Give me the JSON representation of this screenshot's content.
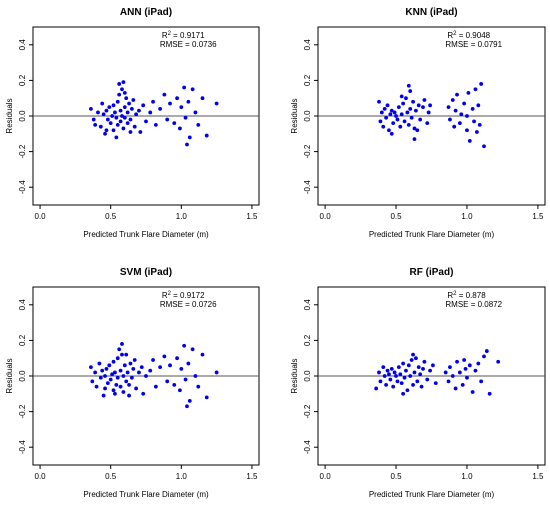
{
  "chart_data": [
    {
      "type": "scatter",
      "title": "ANN (iPad)",
      "xlabel": "Predicted Trunk Flare Diameter (m)",
      "ylabel": "Residuals",
      "xlim": [
        -0.05,
        1.55
      ],
      "ylim": [
        -0.5,
        0.5
      ],
      "xticks": [
        "0.0",
        "0.5",
        "1.0",
        "1.5"
      ],
      "yticks": [
        "-0.4",
        "-0.2",
        "0.0",
        "0.2",
        "0.4"
      ],
      "reference_line_y": 0,
      "stats": {
        "r2_label": "R",
        "r2_sup": "2",
        "r2_value": " = 0.9171",
        "rmse": "RMSE = 0.0736"
      },
      "color": "#0000ee",
      "points": [
        [
          0.36,
          0.04
        ],
        [
          0.38,
          -0.02
        ],
        [
          0.39,
          -0.05
        ],
        [
          0.41,
          0.02
        ],
        [
          0.43,
          -0.06
        ],
        [
          0.44,
          0.07
        ],
        [
          0.45,
          0.01
        ],
        [
          0.46,
          -0.1
        ],
        [
          0.47,
          0.03
        ],
        [
          0.48,
          -0.02
        ],
        [
          0.49,
          0.05
        ],
        [
          0.5,
          -0.04
        ],
        [
          0.51,
          0.0
        ],
        [
          0.52,
          0.06
        ],
        [
          0.52,
          -0.08
        ],
        [
          0.53,
          0.02
        ],
        [
          0.54,
          -0.01
        ],
        [
          0.55,
          0.08
        ],
        [
          0.55,
          -0.05
        ],
        [
          0.56,
          0.12
        ],
        [
          0.57,
          0.03
        ],
        [
          0.57,
          -0.03
        ],
        [
          0.58,
          0.15
        ],
        [
          0.58,
          0.0
        ],
        [
          0.59,
          -0.07
        ],
        [
          0.6,
          0.05
        ],
        [
          0.6,
          -0.01
        ],
        [
          0.61,
          0.1
        ],
        [
          0.62,
          -0.04
        ],
        [
          0.62,
          0.02
        ],
        [
          0.63,
          0.07
        ],
        [
          0.64,
          -0.02
        ],
        [
          0.65,
          0.04
        ],
        [
          0.66,
          0.09
        ],
        [
          0.67,
          -0.06
        ],
        [
          0.68,
          0.01
        ],
        [
          0.7,
          0.03
        ],
        [
          0.71,
          -0.09
        ],
        [
          0.73,
          0.06
        ],
        [
          0.75,
          -0.03
        ],
        [
          0.78,
          0.02
        ],
        [
          0.8,
          0.08
        ],
        [
          0.82,
          -0.05
        ],
        [
          0.85,
          0.04
        ],
        [
          0.88,
          0.12
        ],
        [
          0.9,
          -0.02
        ],
        [
          0.92,
          0.07
        ],
        [
          0.95,
          -0.04
        ],
        [
          0.97,
          0.1
        ],
        [
          0.99,
          -0.07
        ],
        [
          1.0,
          0.05
        ],
        [
          1.02,
          0.16
        ],
        [
          1.03,
          -0.01
        ],
        [
          1.05,
          0.08
        ],
        [
          1.06,
          -0.12
        ],
        [
          1.08,
          0.15
        ],
        [
          1.1,
          0.02
        ],
        [
          1.12,
          -0.05
        ],
        [
          1.15,
          0.1
        ],
        [
          1.18,
          -0.11
        ],
        [
          1.25,
          0.07
        ],
        [
          0.56,
          0.18
        ],
        [
          0.59,
          0.19
        ],
        [
          0.54,
          -0.12
        ],
        [
          0.47,
          -0.08
        ],
        [
          0.64,
          -0.09
        ],
        [
          1.04,
          -0.16
        ],
        [
          0.6,
          0.13
        ]
      ]
    },
    {
      "type": "scatter",
      "title": "KNN (iPad)",
      "xlabel": "Predicted Trunk Flare Diameter (m)",
      "ylabel": "Residuals",
      "xlim": [
        -0.05,
        1.55
      ],
      "ylim": [
        -0.5,
        0.5
      ],
      "xticks": [
        "0.0",
        "0.5",
        "1.0",
        "1.5"
      ],
      "yticks": [
        "-0.4",
        "-0.2",
        "0.0",
        "0.2",
        "0.4"
      ],
      "reference_line_y": 0,
      "stats": {
        "r2_label": "R",
        "r2_sup": "2",
        "r2_value": " = 0.9048",
        "rmse": "RMSE = 0.0791"
      },
      "color": "#0000ee",
      "points": [
        [
          0.38,
          0.08
        ],
        [
          0.39,
          -0.03
        ],
        [
          0.4,
          0.02
        ],
        [
          0.41,
          -0.06
        ],
        [
          0.42,
          0.04
        ],
        [
          0.43,
          -0.01
        ],
        [
          0.44,
          0.06
        ],
        [
          0.45,
          -0.08
        ],
        [
          0.46,
          0.01
        ],
        [
          0.47,
          0.03
        ],
        [
          0.48,
          -0.04
        ],
        [
          0.49,
          0.02
        ],
        [
          0.5,
          0.0
        ],
        [
          0.51,
          -0.02
        ],
        [
          0.52,
          0.05
        ],
        [
          0.53,
          -0.06
        ],
        [
          0.54,
          0.01
        ],
        [
          0.55,
          0.07
        ],
        [
          0.56,
          -0.03
        ],
        [
          0.57,
          0.1
        ],
        [
          0.58,
          0.02
        ],
        [
          0.59,
          -0.05
        ],
        [
          0.6,
          0.14
        ],
        [
          0.6,
          0.04
        ],
        [
          0.61,
          -0.01
        ],
        [
          0.62,
          0.08
        ],
        [
          0.63,
          -0.07
        ],
        [
          0.64,
          0.03
        ],
        [
          0.66,
          0.06
        ],
        [
          0.67,
          -0.02
        ],
        [
          0.69,
          0.05
        ],
        [
          0.7,
          0.09
        ],
        [
          0.72,
          -0.04
        ],
        [
          0.73,
          0.02
        ],
        [
          0.74,
          0.06
        ],
        [
          0.87,
          0.05
        ],
        [
          0.88,
          -0.02
        ],
        [
          0.9,
          0.09
        ],
        [
          0.91,
          -0.06
        ],
        [
          0.92,
          0.03
        ],
        [
          0.93,
          0.12
        ],
        [
          0.95,
          -0.04
        ],
        [
          0.96,
          0.01
        ],
        [
          0.98,
          0.07
        ],
        [
          1.0,
          -0.08
        ],
        [
          1.01,
          0.13
        ],
        [
          1.02,
          -0.14
        ],
        [
          1.04,
          0.04
        ],
        [
          1.05,
          -0.03
        ],
        [
          1.06,
          0.15
        ],
        [
          1.07,
          -0.09
        ],
        [
          1.08,
          0.06
        ],
        [
          1.09,
          -0.05
        ],
        [
          1.1,
          0.18
        ],
        [
          1.12,
          -0.17
        ],
        [
          0.59,
          0.17
        ],
        [
          0.47,
          -0.1
        ],
        [
          0.63,
          -0.13
        ],
        [
          1.0,
          0.0
        ],
        [
          0.54,
          0.11
        ],
        [
          0.65,
          -0.08
        ]
      ]
    },
    {
      "type": "scatter",
      "title": "SVM (iPad)",
      "xlabel": "Predicted Trunk Flare Diameter (m)",
      "ylabel": "Residuals",
      "xlim": [
        -0.05,
        1.55
      ],
      "ylim": [
        -0.5,
        0.5
      ],
      "xticks": [
        "0.0",
        "0.5",
        "1.0",
        "1.5"
      ],
      "yticks": [
        "-0.4",
        "-0.2",
        "0.0",
        "0.2",
        "0.4"
      ],
      "reference_line_y": 0,
      "stats": {
        "r2_label": "R",
        "r2_sup": "2",
        "r2_value": " = 0.9172",
        "rmse": "RMSE = 0.0726"
      },
      "color": "#0000ee",
      "points": [
        [
          0.36,
          0.05
        ],
        [
          0.37,
          -0.03
        ],
        [
          0.39,
          0.02
        ],
        [
          0.4,
          -0.06
        ],
        [
          0.42,
          0.07
        ],
        [
          0.43,
          -0.01
        ],
        [
          0.44,
          0.03
        ],
        [
          0.45,
          -0.11
        ],
        [
          0.46,
          0.0
        ],
        [
          0.47,
          0.04
        ],
        [
          0.48,
          -0.04
        ],
        [
          0.49,
          0.06
        ],
        [
          0.5,
          -0.02
        ],
        [
          0.51,
          0.01
        ],
        [
          0.52,
          0.08
        ],
        [
          0.52,
          -0.08
        ],
        [
          0.53,
          0.02
        ],
        [
          0.54,
          -0.05
        ],
        [
          0.55,
          0.1
        ],
        [
          0.55,
          -0.01
        ],
        [
          0.56,
          0.15
        ],
        [
          0.57,
          0.03
        ],
        [
          0.57,
          -0.06
        ],
        [
          0.58,
          0.18
        ],
        [
          0.59,
          0.0
        ],
        [
          0.59,
          -0.09
        ],
        [
          0.6,
          0.06
        ],
        [
          0.61,
          -0.03
        ],
        [
          0.61,
          0.12
        ],
        [
          0.62,
          0.02
        ],
        [
          0.63,
          -0.05
        ],
        [
          0.64,
          0.07
        ],
        [
          0.65,
          -0.01
        ],
        [
          0.66,
          0.04
        ],
        [
          0.67,
          0.09
        ],
        [
          0.68,
          -0.07
        ],
        [
          0.7,
          0.02
        ],
        [
          0.72,
          0.05
        ],
        [
          0.73,
          -0.1
        ],
        [
          0.75,
          0.0
        ],
        [
          0.78,
          0.03
        ],
        [
          0.8,
          0.09
        ],
        [
          0.82,
          -0.06
        ],
        [
          0.85,
          0.05
        ],
        [
          0.88,
          0.11
        ],
        [
          0.9,
          -0.03
        ],
        [
          0.92,
          0.06
        ],
        [
          0.95,
          -0.05
        ],
        [
          0.97,
          0.1
        ],
        [
          0.99,
          -0.08
        ],
        [
          1.0,
          0.04
        ],
        [
          1.02,
          0.17
        ],
        [
          1.03,
          -0.02
        ],
        [
          1.05,
          0.07
        ],
        [
          1.06,
          -0.14
        ],
        [
          1.08,
          0.15
        ],
        [
          1.1,
          0.0
        ],
        [
          1.12,
          -0.06
        ],
        [
          1.15,
          0.12
        ],
        [
          1.18,
          -0.12
        ],
        [
          1.25,
          0.02
        ],
        [
          0.58,
          0.12
        ],
        [
          0.53,
          -0.1
        ],
        [
          0.63,
          -0.11
        ],
        [
          1.04,
          -0.17
        ],
        [
          0.46,
          -0.07
        ]
      ]
    },
    {
      "type": "scatter",
      "title": "RF (iPad)",
      "xlabel": "Predicted Trunk Flare Diameter (m)",
      "ylabel": "Residuals",
      "xlim": [
        -0.05,
        1.55
      ],
      "ylim": [
        -0.5,
        0.5
      ],
      "xticks": [
        "0.0",
        "0.5",
        "1.0",
        "1.5"
      ],
      "yticks": [
        "-0.4",
        "-0.2",
        "0.0",
        "0.2",
        "0.4"
      ],
      "reference_line_y": 0,
      "stats": {
        "r2_label": "R",
        "r2_sup": "2",
        "r2_value": " = 0.878",
        "rmse": "RMSE = 0.0872"
      },
      "color": "#0000ee",
      "points": [
        [
          0.36,
          -0.07
        ],
        [
          0.38,
          0.02
        ],
        [
          0.39,
          -0.03
        ],
        [
          0.41,
          0.05
        ],
        [
          0.42,
          0.0
        ],
        [
          0.43,
          -0.05
        ],
        [
          0.44,
          0.03
        ],
        [
          0.45,
          0.01
        ],
        [
          0.46,
          -0.02
        ],
        [
          0.47,
          0.04
        ],
        [
          0.48,
          -0.06
        ],
        [
          0.49,
          0.02
        ],
        [
          0.5,
          0.0
        ],
        [
          0.51,
          -0.03
        ],
        [
          0.52,
          0.05
        ],
        [
          0.53,
          0.01
        ],
        [
          0.54,
          -0.04
        ],
        [
          0.55,
          0.07
        ],
        [
          0.56,
          -0.01
        ],
        [
          0.57,
          0.03
        ],
        [
          0.58,
          -0.08
        ],
        [
          0.59,
          0.06
        ],
        [
          0.6,
          0.0
        ],
        [
          0.61,
          0.09
        ],
        [
          0.62,
          -0.05
        ],
        [
          0.63,
          0.02
        ],
        [
          0.64,
          0.1
        ],
        [
          0.65,
          -0.03
        ],
        [
          0.66,
          0.05
        ],
        [
          0.67,
          0.01
        ],
        [
          0.68,
          -0.06
        ],
        [
          0.69,
          0.04
        ],
        [
          0.7,
          0.08
        ],
        [
          0.72,
          -0.02
        ],
        [
          0.74,
          0.03
        ],
        [
          0.76,
          0.06
        ],
        [
          0.78,
          -0.04
        ],
        [
          0.85,
          0.02
        ],
        [
          0.87,
          -0.03
        ],
        [
          0.88,
          0.05
        ],
        [
          0.9,
          0.0
        ],
        [
          0.92,
          -0.07
        ],
        [
          0.93,
          0.08
        ],
        [
          0.95,
          0.02
        ],
        [
          0.97,
          -0.05
        ],
        [
          0.99,
          0.04
        ],
        [
          1.0,
          -0.01
        ],
        [
          1.02,
          0.06
        ],
        [
          1.04,
          -0.09
        ],
        [
          1.06,
          0.03
        ],
        [
          1.08,
          0.07
        ],
        [
          1.1,
          -0.03
        ],
        [
          1.12,
          0.11
        ],
        [
          1.14,
          0.14
        ],
        [
          1.16,
          -0.1
        ],
        [
          1.22,
          0.08
        ],
        [
          0.55,
          -0.1
        ],
        [
          0.62,
          0.12
        ],
        [
          0.98,
          0.09
        ]
      ]
    }
  ]
}
